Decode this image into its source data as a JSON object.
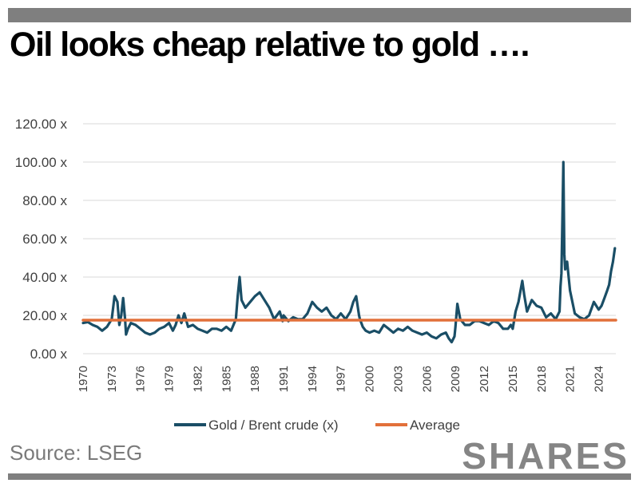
{
  "header": {
    "title": "Oil looks cheap relative to gold ….",
    "accent_color": "#7f7f7f"
  },
  "footer": {
    "source": "Source: LSEG",
    "brand": "SHARES"
  },
  "chart_data": {
    "type": "line",
    "title": "",
    "xlabel": "",
    "ylabel": "",
    "xlim": [
      1970,
      2025.8
    ],
    "ylim": [
      0,
      120
    ],
    "grid": true,
    "legend_position": "bottom",
    "x_ticks": [
      "1970",
      "1973",
      "1976",
      "1979",
      "1982",
      "1985",
      "1988",
      "1991",
      "1994",
      "1997",
      "2000",
      "2003",
      "2006",
      "2009",
      "2012",
      "2015",
      "2018",
      "2021",
      "2024"
    ],
    "y_ticks": [
      "0.00 x",
      "20.00 x",
      "40.00 x",
      "60.00 x",
      "80.00 x",
      "100.00 x",
      "120.00 x"
    ],
    "series": [
      {
        "name": "Gold / Brent crude (x)",
        "color": "#1a4e66",
        "x": [
          1970,
          1970.5,
          1971,
          1971.5,
          1972,
          1972.5,
          1973,
          1973.3,
          1973.6,
          1973.8,
          1974,
          1974.2,
          1974.4,
          1974.5,
          1974.7,
          1975,
          1975.5,
          1976,
          1976.5,
          1977,
          1977.5,
          1978,
          1978.5,
          1979,
          1979.4,
          1979.7,
          1980,
          1980.3,
          1980.6,
          1981,
          1981.5,
          1982,
          1982.5,
          1983,
          1983.5,
          1984,
          1984.5,
          1985,
          1985.5,
          1986,
          1986.2,
          1986.4,
          1986.6,
          1986.8,
          1987,
          1987.5,
          1988,
          1988.5,
          1989,
          1989.5,
          1990,
          1990.3,
          1990.6,
          1990.9,
          1991,
          1991.5,
          1992,
          1992.5,
          1993,
          1993.5,
          1994,
          1994.5,
          1995,
          1995.5,
          1996,
          1996.5,
          1997,
          1997.5,
          1998,
          1998.3,
          1998.6,
          1998.9,
          1999,
          1999.3,
          1999.6,
          2000,
          2000.5,
          2001,
          2001.5,
          2002,
          2002.5,
          2003,
          2003.5,
          2004,
          2004.5,
          2005,
          2005.5,
          2006,
          2006.5,
          2007,
          2007.5,
          2008,
          2008.3,
          2008.6,
          2008.9,
          2009,
          2009.2,
          2009.5,
          2010,
          2010.5,
          2011,
          2011.5,
          2012,
          2012.5,
          2013,
          2013.5,
          2014,
          2014.5,
          2014.8,
          2015,
          2015.3,
          2015.6,
          2016,
          2016.2,
          2016.5,
          2017,
          2017.5,
          2018,
          2018.5,
          2019,
          2019.5,
          2019.9,
          2020,
          2020.1,
          2020.2,
          2020.3,
          2020.4,
          2020.5,
          2020.7,
          2021,
          2021.5,
          2022,
          2022.5,
          2023,
          2023.5,
          2024,
          2024.3,
          2024.6,
          2024.9,
          2025.1,
          2025.3,
          2025.5,
          2025.7
        ],
        "values": [
          16,
          16.5,
          15,
          14,
          12,
          14,
          18,
          30,
          27,
          15,
          20,
          29,
          18,
          10,
          13,
          16,
          15,
          13,
          11,
          10,
          11,
          13,
          14,
          16,
          12,
          15,
          20,
          16,
          21,
          14,
          15,
          13,
          12,
          11,
          13,
          13,
          12,
          14,
          12,
          18,
          30,
          40,
          28,
          26,
          24,
          27,
          30,
          32,
          28,
          24,
          18,
          20,
          22,
          17,
          20,
          17,
          19,
          18,
          18,
          21,
          27,
          24,
          22,
          24,
          20,
          18,
          21,
          18,
          22,
          27,
          30,
          20,
          18,
          14,
          12,
          11,
          12,
          11,
          15,
          13,
          11,
          13,
          12,
          14,
          12,
          11,
          10,
          11,
          9,
          8,
          10,
          11,
          8,
          6,
          9,
          14,
          26,
          18,
          15,
          15,
          17,
          17,
          16,
          15,
          17,
          16,
          13,
          13,
          15,
          13,
          22,
          27,
          38,
          31,
          22,
          28,
          25,
          24,
          19,
          21,
          18,
          22,
          35,
          42,
          70,
          100,
          52,
          44,
          48,
          33,
          21,
          19,
          18,
          20,
          27,
          23,
          25,
          29,
          33,
          36,
          43,
          48,
          55
        ]
      },
      {
        "name": "Average",
        "color": "#e2703a",
        "x": [
          1970,
          2025.8
        ],
        "values": [
          17.5,
          17.5
        ]
      }
    ]
  }
}
